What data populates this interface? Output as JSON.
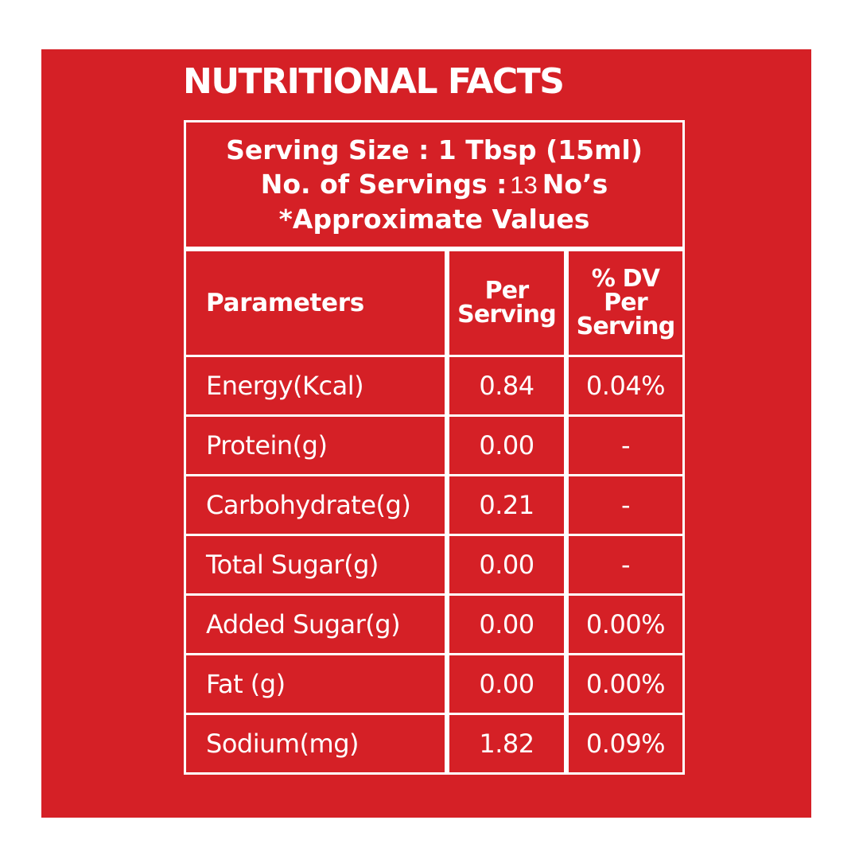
{
  "title": "NUTRITIONAL FACTS",
  "serving": {
    "size_line": "Serving Size : 1 Tbsp (15ml)",
    "servings_label": "No. of Servings :",
    "servings_count": "13",
    "servings_unit": "No’s",
    "note": "*Approximate Values"
  },
  "table": {
    "headers": {
      "parameter": "Parameters",
      "per_serving_line1": "Per",
      "per_serving_line2": "Serving",
      "dv_line1": "% DV",
      "dv_line2": "Per",
      "dv_line3": "Serving"
    },
    "rows": [
      {
        "parameter": "Energy(Kcal)",
        "per_serving": "0.84",
        "dv": "0.04%"
      },
      {
        "parameter": "Protein(g)",
        "per_serving": "0.00",
        "dv": "-"
      },
      {
        "parameter": "Carbohydrate(g)",
        "per_serving": "0.21",
        "dv": "-"
      },
      {
        "parameter": "Total Sugar(g)",
        "per_serving": "0.00",
        "dv": "-"
      },
      {
        "parameter": "Added Sugar(g)",
        "per_serving": "0.00",
        "dv": "0.00%"
      },
      {
        "parameter": "Fat (g)",
        "per_serving": "0.00",
        "dv": "0.00%"
      },
      {
        "parameter": "Sodium(mg)",
        "per_serving": "1.82",
        "dv": "0.09%"
      }
    ]
  },
  "colors": {
    "background": "#d52026",
    "text": "#ffffff",
    "page": "#ffffff"
  }
}
